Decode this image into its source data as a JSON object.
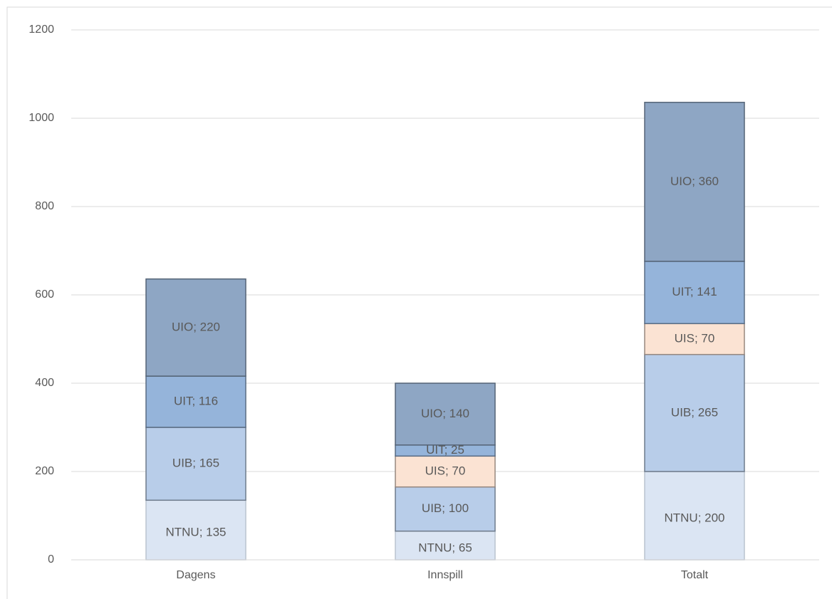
{
  "chart_data": {
    "type": "stacked_bar",
    "categories": [
      "Dagens",
      "Innspill",
      "Totalt"
    ],
    "series": [
      {
        "name": "NTNU",
        "color": "#dbe5f3",
        "values": [
          135,
          65,
          200
        ],
        "value_labels": [
          "NTNU; 135",
          "NTNU; 65",
          "NTNU; 200"
        ]
      },
      {
        "name": "UIB",
        "color": "#b8cde9",
        "values": [
          165,
          100,
          265
        ],
        "value_labels": [
          "UIB; 165",
          "UIB; 100",
          "UIB; 265"
        ]
      },
      {
        "name": "UIS",
        "color": "#fbe3d3",
        "values": [
          null,
          70,
          70
        ],
        "value_labels": [
          null,
          "UIS; 70",
          "UIS; 70"
        ]
      },
      {
        "name": "UIT",
        "color": "#95b4da",
        "values": [
          116,
          25,
          141
        ],
        "value_labels": [
          "UIT; 116",
          "UIT; 25",
          "UIT; 141"
        ]
      },
      {
        "name": "UIO",
        "color": "#8ea6c4",
        "values": [
          220,
          140,
          360
        ],
        "value_labels": [
          "UIO; 220",
          "UIO; 140",
          "UIO; 360"
        ]
      }
    ],
    "ylim": [
      0,
      1200
    ],
    "yticks": [
      0,
      200,
      400,
      600,
      800,
      1000,
      1200
    ],
    "grid": true
  }
}
